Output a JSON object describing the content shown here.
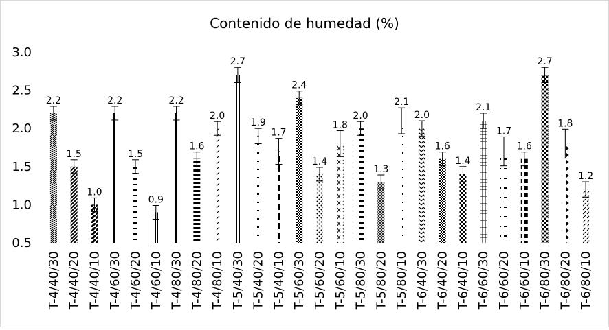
{
  "chart_data": {
    "type": "bar",
    "title": "Contenido de humedad (%)",
    "xlabel": "",
    "ylabel": "",
    "ylim": [
      0.5,
      3.0
    ],
    "yticks": [
      "0.5",
      "1.0",
      "1.5",
      "2.0",
      "2.5",
      "3.0"
    ],
    "grid": true,
    "legend": "none",
    "categories": [
      "T-4/40/30",
      "T-4/40/20",
      "T-4/40/10",
      "T-4/60/30",
      "T-4/60/20",
      "T-4/60/10",
      "T-4/80/30",
      "T-4/80/20",
      "T-4/80/10",
      "T-5/40/30",
      "T-5/40/20",
      "T-5/40/10",
      "T-5/60/30",
      "T-5/60/20",
      "T-5/60/10",
      "T-5/80/30",
      "T-5/80/20",
      "T-5/80/10",
      "T-6/40/30",
      "T-6/40/20",
      "T-6/40/10",
      "T-6/60/30",
      "T-6/60/20",
      "T-6/60/10",
      "T-6/80/30",
      "T-6/80/20",
      "T-6/80/10"
    ],
    "values": [
      2.2,
      1.5,
      1.0,
      2.2,
      1.5,
      0.9,
      2.2,
      1.6,
      2.0,
      2.7,
      1.9,
      1.7,
      2.4,
      1.4,
      1.8,
      2.0,
      1.3,
      2.1,
      2.0,
      1.6,
      1.4,
      2.1,
      1.7,
      1.6,
      2.7,
      1.8,
      1.2
    ],
    "data_labels": [
      "2.2",
      "1.5",
      "1.0",
      "2.2",
      "1.5",
      "0.9",
      "2.2",
      "1.6",
      "2.0",
      "2.7",
      "1.9",
      "1.7",
      "2.4",
      "1.4",
      "1.8",
      "2.0",
      "1.3",
      "2.1",
      "2.0",
      "1.6",
      "1.4",
      "2.1",
      "1.7",
      "1.6",
      "2.7",
      "1.8",
      "1.2"
    ],
    "errors": [
      0.09,
      0.09,
      0.09,
      0.09,
      0.09,
      0.09,
      0.09,
      0.09,
      0.09,
      0.1,
      0.1,
      0.17,
      0.09,
      0.09,
      0.17,
      0.09,
      0.09,
      0.17,
      0.1,
      0.09,
      0.1,
      0.1,
      0.19,
      0.09,
      0.1,
      0.19,
      0.1
    ],
    "patterns": [
      "zigzag",
      "diagwide",
      "diagshort",
      "vline1",
      "hdash",
      "vtriple",
      "vthick",
      "hbars",
      "diaglight",
      "vdouble",
      "hdashed",
      "hdashlong",
      "checker",
      "diagdots",
      "diagx",
      "hbarsdash",
      "crosshatch",
      "dots",
      "zigzagsmall",
      "checkersmall",
      "checkerbig",
      "grid",
      "hdashlong2",
      "blocks",
      "crossdiamond",
      "triangles",
      "diagdash"
    ]
  }
}
